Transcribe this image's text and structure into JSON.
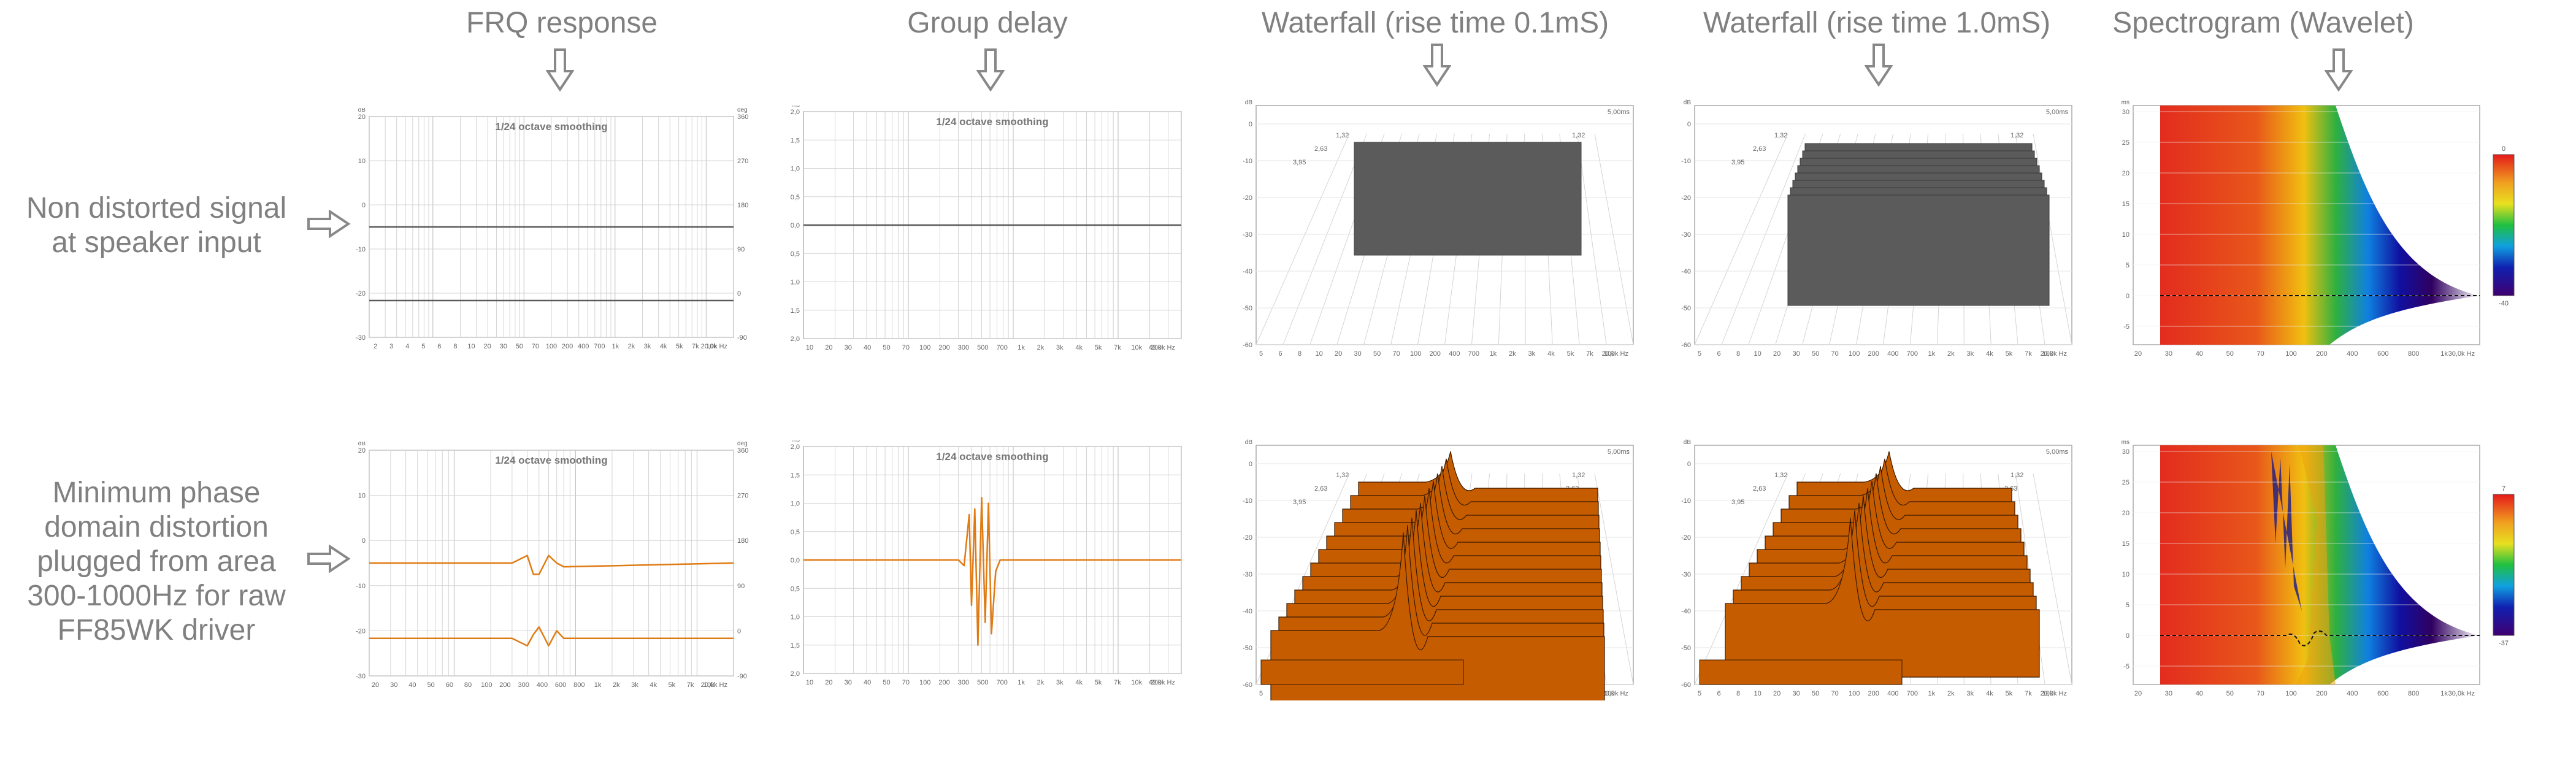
{
  "columns": [
    "FRQ response",
    "Group delay",
    "Waterfall (rise time 0.1mS)",
    "Waterfall (rise time 1.0mS)",
    "Spectrogram (Wavelet)"
  ],
  "rows": [
    [
      "Non distorted signal",
      "at speaker input"
    ],
    [
      "Minimum phase",
      "domain distortion",
      "plugged from area",
      "300-1000Hz for raw",
      "FF85WK driver"
    ]
  ],
  "colors": {
    "undistorted": "#5a5a5a",
    "distorted": "#e07b14",
    "waterfall_orange": "#c65c00",
    "grid": "#d4d4d4"
  },
  "chart_data": [
    {
      "id": "frq-clean",
      "type": "line",
      "annotation": "1/24 octave smoothing",
      "y_ticks": [
        "20",
        "10",
        "0",
        "-10",
        "-20",
        "-30"
      ],
      "y2_ticks": [
        "360",
        "270",
        "180",
        "90",
        "0",
        "-90"
      ],
      "y_unit": "dB",
      "y2_unit": "deg",
      "ylim": [
        -30,
        30
      ],
      "x_ticks": [
        "2",
        "3",
        "4",
        "5",
        "6",
        "8",
        "10",
        "20",
        "30",
        "50",
        "70",
        "100",
        "200",
        "400",
        "700",
        "1k",
        "2k",
        "3k",
        "4k",
        "5k",
        "7k",
        "10k",
        "20,0k Hz"
      ],
      "series": [
        {
          "values": [
            {
              "x": 2,
              "y": 0
            },
            {
              "x": 20000,
              "y": 0
            }
          ]
        },
        {
          "values": [
            {
              "x": 2,
              "y": -20
            },
            {
              "x": 20000,
              "y": -20
            }
          ]
        }
      ]
    },
    {
      "id": "gd-clean",
      "type": "line",
      "annotation": "1/24 octave smoothing",
      "y_ticks": [
        "2,0",
        "1,5",
        "1,0",
        "0,5",
        "0,0",
        "-0,5",
        "-1,0",
        "-1,5",
        "-2,0"
      ],
      "y_unit": "ms",
      "ylim": [
        -2,
        2
      ],
      "x_ticks": [
        "10",
        "20",
        "30",
        "40",
        "50",
        "70",
        "100",
        "200",
        "300",
        "500",
        "700",
        "1k",
        "2k",
        "3k",
        "4k",
        "5k",
        "7k",
        "10k",
        "20k",
        "40,0k Hz"
      ],
      "series": [
        {
          "values": [
            {
              "x": 10,
              "y": 0
            },
            {
              "x": 40000,
              "y": 0
            }
          ]
        }
      ]
    },
    {
      "id": "wf01-clean",
      "type": "area",
      "y_unit": "dB",
      "time_label": "5,00ms",
      "z_labels": [
        "1,32",
        "2,63",
        "3,95"
      ],
      "y_ticks": [
        "0",
        "-10",
        "-20",
        "-30",
        "-40",
        "-50",
        "-60"
      ],
      "x_ticks": [
        "5",
        "6",
        "8",
        "10",
        "20",
        "30",
        "50",
        "70",
        "100",
        "200",
        "400",
        "700",
        "1k",
        "2k",
        "3k",
        "4k",
        "5k",
        "7k",
        "10k",
        "20,0k Hz"
      ]
    },
    {
      "id": "wf10-clean",
      "type": "area",
      "y_unit": "dB",
      "time_label": "5,00ms",
      "z_labels": [
        "1,32",
        "2,63",
        "3,95"
      ],
      "y_ticks": [
        "0",
        "-10",
        "-20",
        "-30",
        "-40",
        "-50",
        "-60"
      ],
      "x_ticks": [
        "5",
        "6",
        "8",
        "10",
        "20",
        "30",
        "50",
        "70",
        "100",
        "200",
        "400",
        "700",
        "1k",
        "2k",
        "3k",
        "4k",
        "5k",
        "7k",
        "10k",
        "20,0k Hz"
      ]
    },
    {
      "id": "spec-clean",
      "type": "heatmap",
      "y_unit": "ms",
      "y_ticks": [
        "30",
        "25",
        "20",
        "15",
        "10",
        "5",
        "0",
        "-5"
      ],
      "ylim": [
        -8,
        31
      ],
      "x_ticks": [
        "20",
        "30",
        "40",
        "50",
        "70",
        "100",
        "200",
        "400",
        "600",
        "800",
        "1k",
        "30,0k Hz"
      ],
      "colorbar": [
        "0",
        "-40"
      ]
    },
    {
      "id": "frq-dist",
      "type": "line",
      "annotation": "1/24 octave smoothing",
      "y_ticks": [
        "20",
        "10",
        "0",
        "-10",
        "-20",
        "-30"
      ],
      "y2_ticks": [
        "360",
        "270",
        "180",
        "90",
        "0",
        "-90"
      ],
      "y_unit": "dB",
      "y2_unit": "deg",
      "ylim": [
        -30,
        30
      ],
      "x_ticks": [
        "20",
        "30",
        "40",
        "50",
        "60",
        "80",
        "100",
        "200",
        "300",
        "400",
        "600",
        "800",
        "1k",
        "2k",
        "3k",
        "4k",
        "5k",
        "7k",
        "10k",
        "20,0k Hz"
      ],
      "series": [
        {
          "values": [
            {
              "x": 20,
              "y": 0
            },
            {
              "x": 300,
              "y": 0
            },
            {
              "x": 400,
              "y": 2
            },
            {
              "x": 450,
              "y": -3
            },
            {
              "x": 500,
              "y": -3
            },
            {
              "x": 600,
              "y": 2
            },
            {
              "x": 700,
              "y": 0
            },
            {
              "x": 800,
              "y": -1
            },
            {
              "x": 20000,
              "y": 0
            }
          ]
        },
        {
          "values": [
            {
              "x": 20,
              "y": -20
            },
            {
              "x": 300,
              "y": -20
            },
            {
              "x": 400,
              "y": -22
            },
            {
              "x": 450,
              "y": -19
            },
            {
              "x": 500,
              "y": -17
            },
            {
              "x": 600,
              "y": -22
            },
            {
              "x": 700,
              "y": -18
            },
            {
              "x": 800,
              "y": -20
            },
            {
              "x": 20000,
              "y": -20
            }
          ]
        }
      ]
    },
    {
      "id": "gd-dist",
      "type": "line",
      "annotation": "1/24 octave smoothing",
      "y_ticks": [
        "2,0",
        "1,5",
        "1,0",
        "0,5",
        "0,0",
        "-0,5",
        "-1,0",
        "-1,5",
        "-2,0"
      ],
      "y_unit": "ms",
      "ylim": [
        -2,
        2
      ],
      "x_ticks": [
        "10",
        "20",
        "30",
        "40",
        "50",
        "70",
        "100",
        "200",
        "300",
        "500",
        "700",
        "1k",
        "2k",
        "3k",
        "4k",
        "5k",
        "7k",
        "10k",
        "20k",
        "40,0k Hz"
      ],
      "series": [
        {
          "values": [
            {
              "x": 10,
              "y": 0
            },
            {
              "x": 300,
              "y": 0
            },
            {
              "x": 340,
              "y": -0.1
            },
            {
              "x": 380,
              "y": 0.8
            },
            {
              "x": 400,
              "y": -0.8
            },
            {
              "x": 430,
              "y": 0.9
            },
            {
              "x": 460,
              "y": -1.5
            },
            {
              "x": 500,
              "y": 1.1
            },
            {
              "x": 540,
              "y": -1.1
            },
            {
              "x": 580,
              "y": 1.0
            },
            {
              "x": 620,
              "y": -1.3
            },
            {
              "x": 680,
              "y": -0.2
            },
            {
              "x": 750,
              "y": 0
            },
            {
              "x": 40000,
              "y": 0
            }
          ]
        }
      ]
    },
    {
      "id": "wf01-dist",
      "type": "area",
      "y_unit": "dB",
      "time_label": "5,00ms",
      "z_labels": [
        "1,32",
        "2,63",
        "3,95"
      ],
      "y_ticks": [
        "0",
        "-10",
        "-20",
        "-30",
        "-40",
        "-50",
        "-60"
      ],
      "x_ticks": [
        "5",
        "6",
        "8",
        "10",
        "20",
        "30",
        "50",
        "70",
        "100",
        "200",
        "400",
        "700",
        "1k",
        "2k",
        "3k",
        "4k",
        "5k",
        "7k",
        "10k",
        "20,0k Hz"
      ]
    },
    {
      "id": "wf10-dist",
      "type": "area",
      "y_unit": "dB",
      "time_label": "5,00ms",
      "z_labels": [
        "1,32",
        "2,63",
        "3,95"
      ],
      "y_ticks": [
        "0",
        "-10",
        "-20",
        "-30",
        "-40",
        "-50",
        "-60"
      ],
      "x_ticks": [
        "5",
        "6",
        "8",
        "10",
        "20",
        "30",
        "50",
        "70",
        "100",
        "200",
        "400",
        "700",
        "1k",
        "2k",
        "3k",
        "4k",
        "5k",
        "7k",
        "10k",
        "20,0k Hz"
      ]
    },
    {
      "id": "spec-dist",
      "type": "heatmap",
      "y_unit": "ms",
      "y_ticks": [
        "30",
        "25",
        "20",
        "15",
        "10",
        "5",
        "0",
        "-5"
      ],
      "ylim": [
        -8,
        31
      ],
      "x_ticks": [
        "20",
        "30",
        "40",
        "50",
        "70",
        "100",
        "200",
        "400",
        "600",
        "800",
        "1k",
        "30,0k Hz"
      ],
      "colorbar": [
        "7",
        "-37"
      ]
    }
  ]
}
